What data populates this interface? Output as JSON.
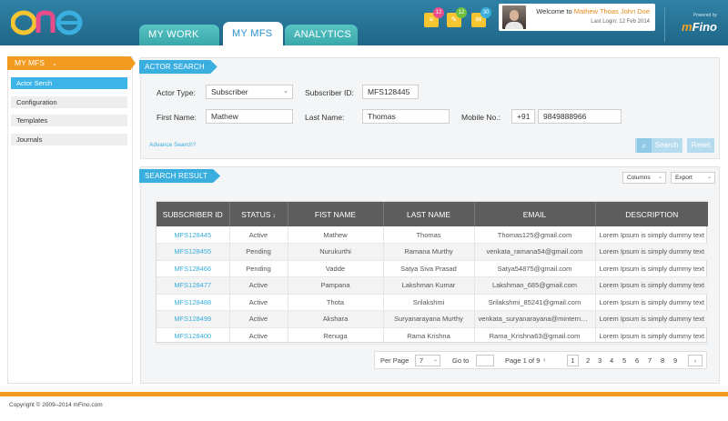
{
  "header": {
    "logo_text": "one",
    "tabs": [
      {
        "label": "MY WORK LIST"
      },
      {
        "label": "MY MFS"
      },
      {
        "label": "ANALYTICS"
      }
    ],
    "notifications": [
      {
        "icon": "list-icon",
        "count": "12",
        "count_color": "#e94c8b"
      },
      {
        "icon": "clipboard-icon",
        "count": "12",
        "count_color": "#6cbf3f"
      },
      {
        "icon": "mail-icon",
        "count": "30",
        "count_color": "#3aaedf"
      }
    ],
    "user": {
      "welcome_prefix": "Welcome to ",
      "name": "Mathew Thoas John Doe",
      "last_login": "Last Login: 12 Feb 2014"
    },
    "brand": {
      "powered_by": "Powered by",
      "name_m": "m",
      "name_rest": "Fino"
    }
  },
  "sidebar": {
    "title": "MY MFS",
    "items": [
      {
        "label": "Actor Serch",
        "active": true
      },
      {
        "label": "Configuration"
      },
      {
        "label": "Templates"
      },
      {
        "label": "Journals"
      }
    ]
  },
  "actor_search": {
    "title": "ACTOR SEARCH",
    "actor_type_label": "Actor Type:",
    "actor_type_value": "Subscriber",
    "subscriber_id_label": "Subscriber ID:",
    "subscriber_id_value": "MFS128445",
    "first_name_label": "First Name:",
    "first_name_value": "Mathew",
    "last_name_label": "Last Name:",
    "last_name_value": "Thomas",
    "mobile_label": "Mobile No.:",
    "mobile_code": "+91",
    "mobile_value": "9849888966",
    "advance_search": "Advance Search?",
    "search_button": "Search",
    "reset_button": "Reset"
  },
  "search_result": {
    "title": "SEARCH RESULT",
    "columns_dropdown": "Columns",
    "export_dropdown": "Export",
    "headers": [
      "SUBSCRIBER ID",
      "STATUS",
      "FIST NAME",
      "LAST NAME",
      "EMAIL",
      "DESCRIPTION"
    ],
    "rows": [
      [
        "MFS128445",
        "Active",
        "Mathew",
        "Thomas",
        "Thomas125@gmail.com",
        "Lorem Ipsum is simply dummy text"
      ],
      [
        "MFS128455",
        "Pending",
        "Nurukurthi",
        "Ramana Murthy",
        "venkata_ramana54@gmail.com",
        "Lorem Ipsum is simply dummy text"
      ],
      [
        "MFS128466",
        "Pending",
        "Vadde",
        "Satya  Siva Prasad",
        "Satya54875@gmail.com",
        "Lorem Ipsum is simply dummy text"
      ],
      [
        "MFS128477",
        "Active",
        "Pampana",
        "Lakshman Kumar",
        "Lakshman_685@gmail.com",
        "Lorem Ipsum is simply dummy text"
      ],
      [
        "MFS128488",
        "Active",
        "Thota",
        "Srilakshmi",
        "Srilakshmi_85241@gmail.com",
        "Lorem Ipsum is simply dummy text"
      ],
      [
        "MFS128499",
        "Active",
        "Akshara",
        "Suryanarayana Murthy",
        "venkata_suryanarayana@minternet.com",
        "Lorem Ipsum is simply dummy text"
      ],
      [
        "MFS128400",
        "Active",
        "Renuga",
        "Rama Krishna",
        "Rama_Krishna63@gmail.com",
        "Lorem Ipsum is simply dummy text"
      ]
    ],
    "pager": {
      "per_page_label": "Per Page",
      "per_page_value": "7",
      "goto_label": "Go to",
      "page_info": "Page 1 of 9",
      "pages": [
        "1",
        "2",
        "3",
        "4",
        "5",
        "6",
        "7",
        "8",
        "9"
      ],
      "current_page": "1"
    }
  },
  "footer": {
    "copyright": "Copyright © 2009–2014 mFino.com"
  }
}
